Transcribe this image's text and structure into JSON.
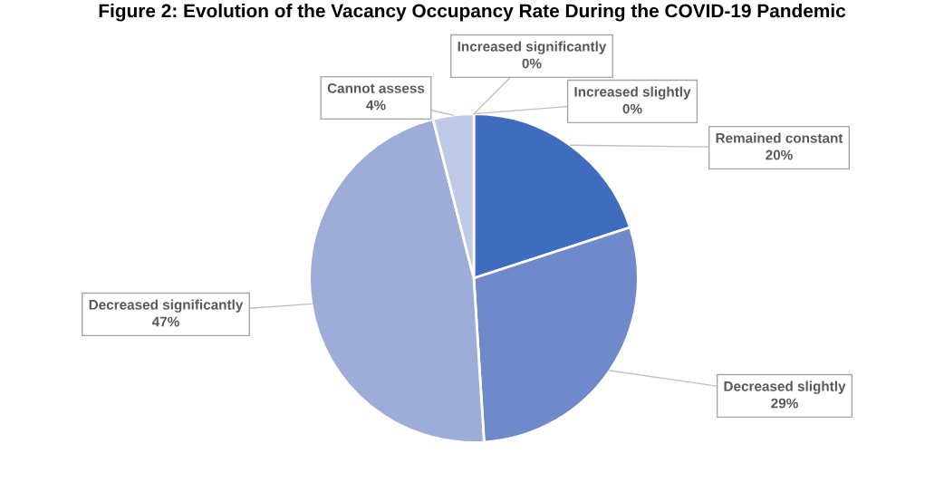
{
  "chart_data": {
    "type": "pie",
    "title": "Figure 2: Evolution of the Vacancy Occupancy Rate During the COVID-19 Pandemic",
    "categories": [
      "Increased significantly",
      "Increased slightly",
      "Remained constant",
      "Decreased slightly",
      "Decreased significantly",
      "Cannot assess"
    ],
    "values": [
      0,
      0,
      20,
      29,
      47,
      4
    ],
    "value_labels": [
      "0%",
      "0%",
      "20%",
      "29%",
      "47%",
      "4%"
    ],
    "colors": [
      "#2f5597",
      "#3a62ad",
      "#406cbd",
      "#6f89cb",
      "#9eadd8",
      "#c0c9e5"
    ],
    "legend": false
  }
}
